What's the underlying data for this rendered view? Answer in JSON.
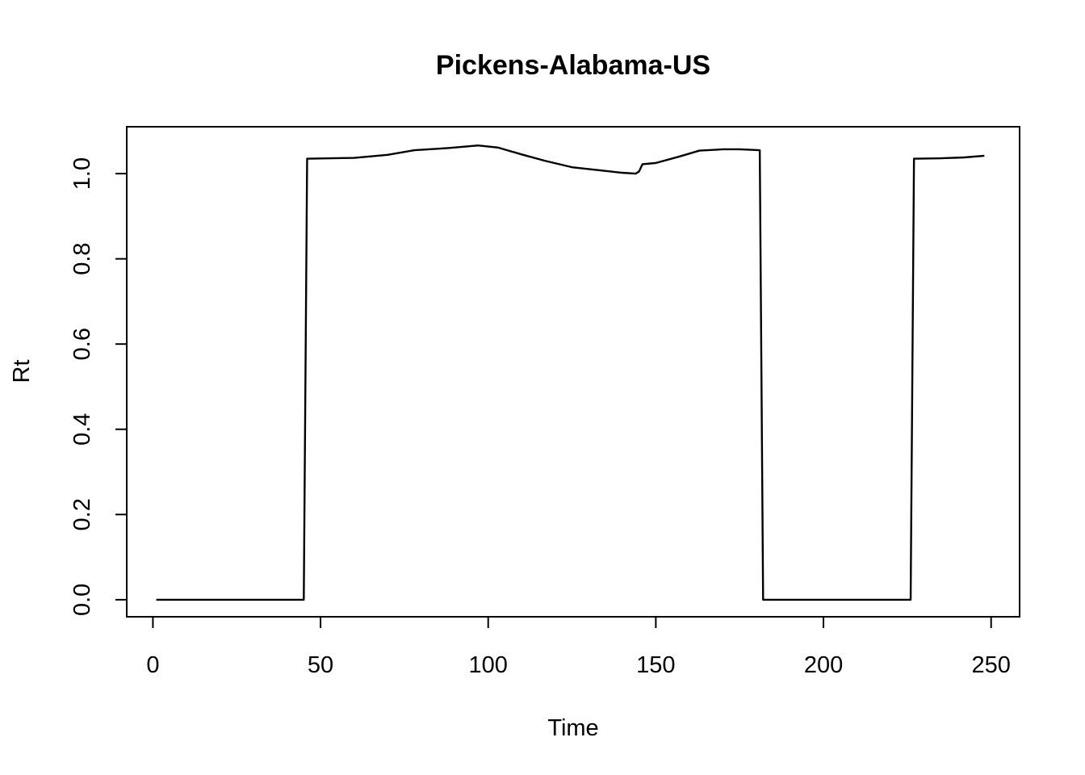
{
  "chart_data": {
    "type": "line",
    "title": "Pickens-Alabama-US",
    "xlabel": "Time",
    "ylabel": "Rt",
    "xlim": [
      -7.8,
      258.5
    ],
    "ylim": [
      -0.04,
      1.11
    ],
    "xticks": [
      0,
      50,
      100,
      150,
      200,
      250
    ],
    "xtick_labels": [
      "0",
      "50",
      "100",
      "150",
      "200",
      "250"
    ],
    "yticks": [
      0.0,
      0.2,
      0.4,
      0.6,
      0.8,
      1.0
    ],
    "ytick_labels": [
      "0.0",
      "0.2",
      "0.4",
      "0.6",
      "0.8",
      "1.0"
    ],
    "grid": false,
    "legend": "none",
    "line_color": "#000000",
    "series": [
      {
        "points": [
          [
            1,
            0.0
          ],
          [
            45,
            0.0
          ],
          [
            46,
            1.035
          ],
          [
            60,
            1.037
          ],
          [
            70,
            1.044
          ],
          [
            78,
            1.055
          ],
          [
            88,
            1.06
          ],
          [
            97,
            1.066
          ],
          [
            103,
            1.061
          ],
          [
            110,
            1.045
          ],
          [
            117,
            1.03
          ],
          [
            125,
            1.015
          ],
          [
            133,
            1.008
          ],
          [
            140,
            1.002
          ],
          [
            144,
            1.0
          ],
          [
            145,
            1.005
          ],
          [
            146,
            1.022
          ],
          [
            150,
            1.025
          ],
          [
            157,
            1.04
          ],
          [
            163,
            1.054
          ],
          [
            170,
            1.057
          ],
          [
            175,
            1.057
          ],
          [
            181,
            1.055
          ],
          [
            182,
            0.0
          ],
          [
            226,
            0.0
          ],
          [
            227,
            1.035
          ],
          [
            235,
            1.036
          ],
          [
            242,
            1.038
          ],
          [
            248,
            1.042
          ]
        ]
      }
    ]
  }
}
